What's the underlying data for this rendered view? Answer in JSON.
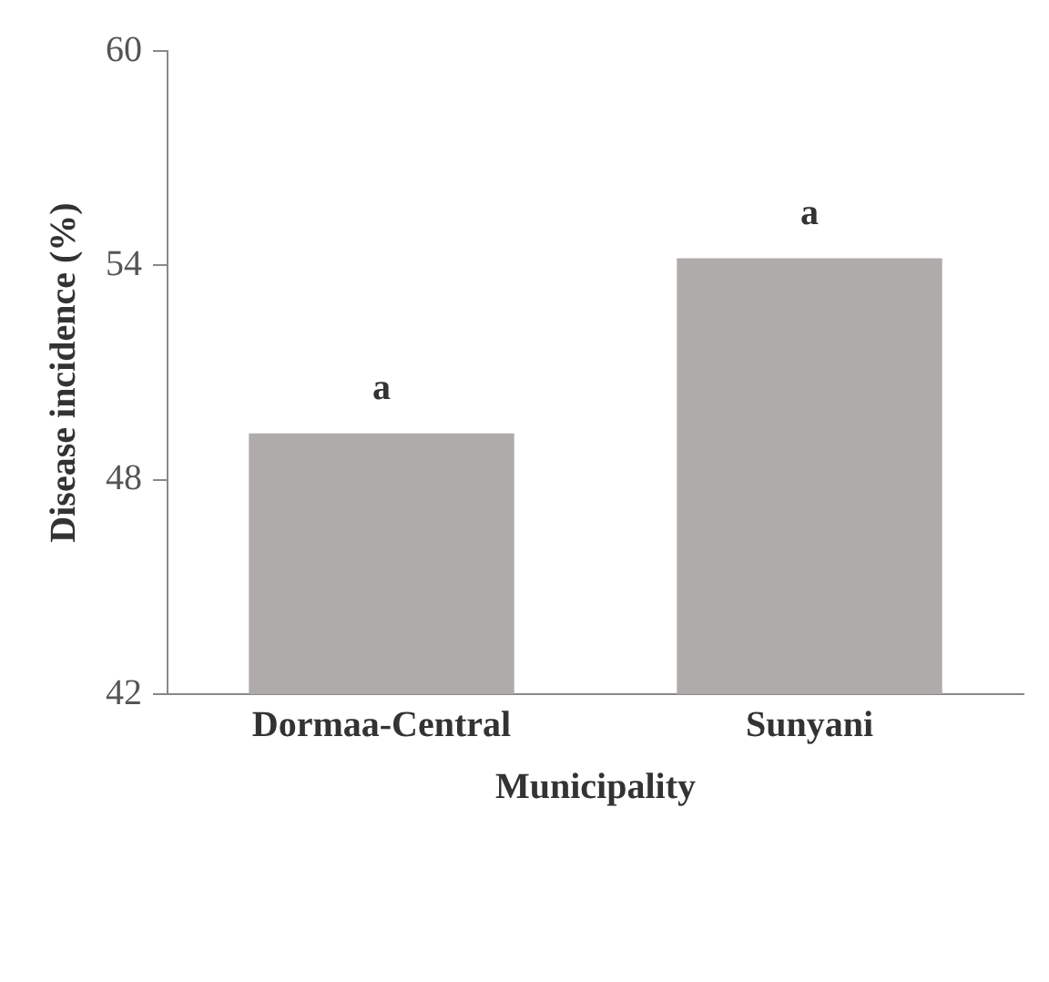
{
  "chart_data": {
    "type": "bar",
    "xlabel": "Municipality",
    "ylabel": "Disease incidence (%)",
    "categories": [
      "Dormaa-Central",
      "Sunyani"
    ],
    "values": [
      49.3,
      54.2
    ],
    "color": "#afabab",
    "ylim": [
      42,
      60
    ],
    "yticks": [
      42,
      48,
      54,
      60
    ],
    "grid": false,
    "legend": false,
    "annotations": [
      {
        "text": "a",
        "x": "Dormaa-Central",
        "y": 49.3
      },
      {
        "text": "a",
        "x": "Sunyani",
        "y": 54.2
      }
    ]
  }
}
